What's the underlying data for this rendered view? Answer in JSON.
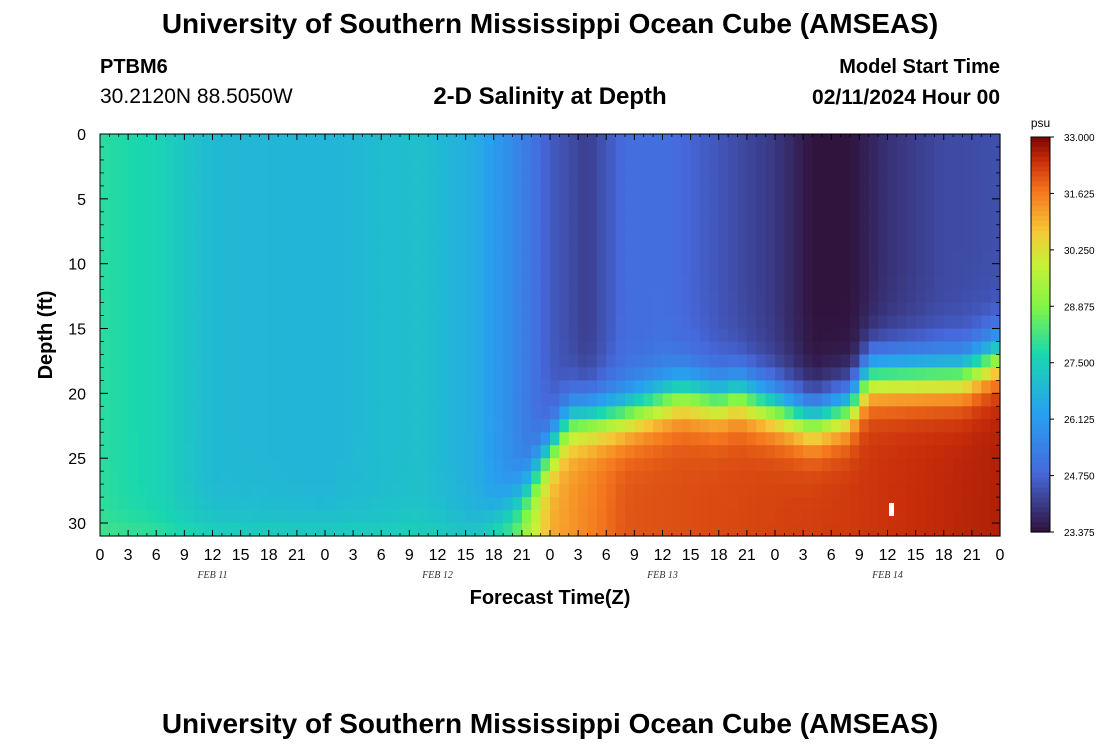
{
  "header": {
    "title": "University of Southern Mississippi Ocean Cube (AMSEAS)",
    "station": "PTBM6",
    "coordinates": "30.2120N  88.5050W",
    "subtitle": "2-D Salinity at Depth",
    "model_start_label": "Model Start Time",
    "model_start_value": "02/11/2024 Hour 00"
  },
  "footer": {
    "title": "University of Southern Mississippi Ocean Cube (AMSEAS)"
  },
  "chart_data": {
    "type": "heatmap",
    "title": "2-D Salinity at Depth",
    "xlabel": "Forecast Time(Z)",
    "ylabel": "Depth (ft)",
    "x_hours_range": [
      0,
      96
    ],
    "x_tick_step_hours": 3,
    "x_tick_labels": [
      "0",
      "3",
      "6",
      "9",
      "12",
      "15",
      "18",
      "21",
      "0",
      "3",
      "6",
      "9",
      "12",
      "15",
      "18",
      "21",
      "0",
      "3",
      "6",
      "9",
      "12",
      "15",
      "18",
      "21",
      "0",
      "3",
      "6",
      "9",
      "12",
      "15",
      "18",
      "21",
      "0"
    ],
    "date_labels": [
      {
        "label": "FEB 11",
        "hour": 12
      },
      {
        "label": "FEB 12",
        "hour": 36
      },
      {
        "label": "FEB 13",
        "hour": 60
      },
      {
        "label": "FEB 14",
        "hour": 84
      }
    ],
    "ylim": [
      0,
      31
    ],
    "y_ticks": [
      0,
      5,
      10,
      15,
      20,
      25,
      30
    ],
    "colorbar": {
      "unit": "psu",
      "min": 23.375,
      "max": 33.0,
      "ticks": [
        "33.000",
        "31.625",
        "30.250",
        "28.875",
        "27.500",
        "26.125",
        "24.750",
        "23.375"
      ]
    },
    "interface_depth_ft": [
      {
        "hour": 0,
        "depth": 31
      },
      {
        "hour": 40,
        "depth": 31
      },
      {
        "hour": 45,
        "depth": 28
      },
      {
        "hour": 50,
        "depth": 22
      },
      {
        "hour": 56,
        "depth": 21.5
      },
      {
        "hour": 62,
        "depth": 20
      },
      {
        "hour": 66,
        "depth": 20.5
      },
      {
        "hour": 68,
        "depth": 20
      },
      {
        "hour": 72,
        "depth": 21
      },
      {
        "hour": 76,
        "depth": 22
      },
      {
        "hour": 80,
        "depth": 21
      },
      {
        "hour": 82,
        "depth": 18.5
      },
      {
        "hour": 86,
        "depth": 18.5
      },
      {
        "hour": 92,
        "depth": 18.5
      },
      {
        "hour": 96,
        "depth": 17
      }
    ],
    "surface_salinity_psu": [
      {
        "hour": 0,
        "value": 27.9
      },
      {
        "hour": 6,
        "value": 27.6
      },
      {
        "hour": 12,
        "value": 26.9
      },
      {
        "hour": 24,
        "value": 26.8
      },
      {
        "hour": 34,
        "value": 27.1
      },
      {
        "hour": 40,
        "value": 26.6
      },
      {
        "hour": 44,
        "value": 25.7
      },
      {
        "hour": 48,
        "value": 24.6
      },
      {
        "hour": 52,
        "value": 24.1
      },
      {
        "hour": 56,
        "value": 24.9
      },
      {
        "hour": 60,
        "value": 25.0
      },
      {
        "hour": 66,
        "value": 24.5
      },
      {
        "hour": 72,
        "value": 24.0
      },
      {
        "hour": 76,
        "value": 23.4
      },
      {
        "hour": 80,
        "value": 23.4
      },
      {
        "hour": 84,
        "value": 23.9
      },
      {
        "hour": 90,
        "value": 24.3
      },
      {
        "hour": 96,
        "value": 24.4
      }
    ],
    "deep_salinity_psu": [
      {
        "hour": 0,
        "value": 28.4
      },
      {
        "hour": 36,
        "value": 28.0
      },
      {
        "hour": 40,
        "value": 28.0
      },
      {
        "hour": 44,
        "value": 28.5
      },
      {
        "hour": 48,
        "value": 31.0
      },
      {
        "hour": 56,
        "value": 32.0
      },
      {
        "hour": 80,
        "value": 32.3
      },
      {
        "hour": 96,
        "value": 32.6
      }
    ]
  }
}
